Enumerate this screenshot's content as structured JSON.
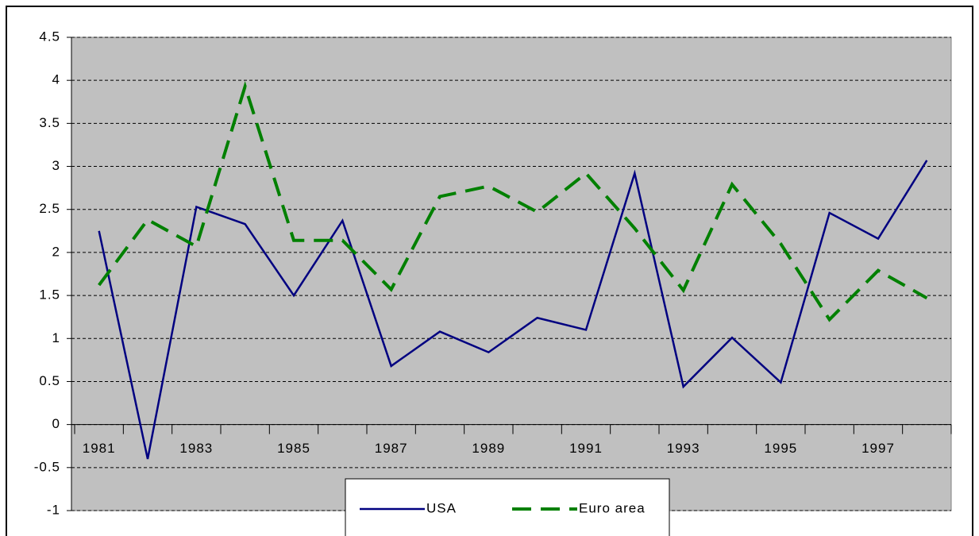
{
  "chart_data": {
    "type": "line",
    "categories": [
      "1981",
      null,
      "1983",
      null,
      "1985",
      null,
      "1987",
      null,
      "1989",
      null,
      "1991",
      null,
      "1993",
      null,
      "1995",
      null,
      "1997",
      null
    ],
    "series": [
      {
        "name": "USA",
        "color": "#000080",
        "dash": false,
        "values": [
          2.25,
          -0.4,
          2.53,
          2.33,
          1.5,
          2.37,
          0.68,
          1.08,
          0.84,
          1.24,
          1.1,
          2.92,
          0.44,
          1.01,
          0.49,
          2.46,
          2.16,
          3.07
        ]
      },
      {
        "name": "Euro area",
        "color": "#008000",
        "dash": true,
        "values": [
          1.62,
          2.38,
          2.07,
          3.93,
          2.14,
          2.14,
          1.57,
          2.65,
          2.77,
          2.47,
          2.92,
          2.28,
          1.56,
          2.79,
          2.1,
          1.22,
          1.79,
          1.47
        ]
      }
    ],
    "ylim": [
      -1,
      4.5
    ],
    "yticks": [
      -1,
      -0.5,
      0,
      0.5,
      1,
      1.5,
      2,
      2.5,
      3,
      3.5,
      4,
      4.5
    ],
    "grid": true,
    "legend": "bottom"
  }
}
